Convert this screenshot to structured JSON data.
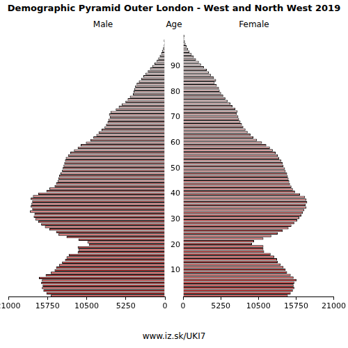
{
  "chart_data": {
    "type": "bar",
    "orientation": "horizontal",
    "title": "Demographic Pyramid Outer London - West and North West 2019",
    "ylabel": "Age",
    "footer": "www.iz.sk/UKI7",
    "categories": [
      null,
      null,
      null,
      null,
      null,
      null,
      null,
      null,
      null,
      null,
      "10",
      null,
      null,
      null,
      null,
      null,
      null,
      null,
      null,
      null,
      "20",
      null,
      null,
      null,
      null,
      null,
      null,
      null,
      null,
      null,
      "30",
      null,
      null,
      null,
      null,
      null,
      null,
      null,
      null,
      null,
      "40",
      null,
      null,
      null,
      null,
      null,
      null,
      null,
      null,
      null,
      "50",
      null,
      null,
      null,
      null,
      null,
      null,
      null,
      null,
      null,
      "60",
      null,
      null,
      null,
      null,
      null,
      null,
      null,
      null,
      null,
      "70",
      null,
      null,
      null,
      null,
      null,
      null,
      null,
      null,
      null,
      "80",
      null,
      null,
      null,
      null,
      null,
      null,
      null,
      null,
      null,
      "90",
      null,
      null,
      null,
      null,
      null,
      null,
      null,
      null,
      null,
      null
    ],
    "series": [
      {
        "name": "Male",
        "color": "#d03c3c",
        "values": [
          15300,
          15900,
          16300,
          16500,
          16400,
          16600,
          16500,
          16900,
          16000,
          15300,
          14800,
          14600,
          14200,
          13800,
          13400,
          13200,
          12900,
          11700,
          11600,
          11700,
          10200,
          10400,
          11600,
          13200,
          14300,
          14600,
          15500,
          16100,
          16600,
          17000,
          17400,
          17600,
          17500,
          18100,
          17800,
          18000,
          17900,
          17800,
          18000,
          17700,
          17000,
          15900,
          15500,
          14800,
          14600,
          14400,
          14300,
          14200,
          14000,
          13800,
          13700,
          13600,
          13500,
          13400,
          13300,
          13000,
          12700,
          12200,
          11700,
          11300,
          10600,
          10000,
          9600,
          9200,
          8900,
          8500,
          8100,
          7900,
          7700,
          7600,
          7400,
          7500,
          7300,
          6600,
          6200,
          5800,
          5300,
          5000,
          4700,
          4300,
          4200,
          4100,
          4000,
          3800,
          3500,
          3200,
          2900,
          2600,
          2300,
          2000,
          1700,
          1400,
          1100,
          900,
          700,
          500,
          400,
          250,
          150,
          100,
          150
        ]
      },
      {
        "name": "Female",
        "color": "#d03c3c",
        "values": [
          14600,
          15000,
          15300,
          15500,
          15400,
          15500,
          15800,
          15400,
          15000,
          14500,
          14300,
          14000,
          13600,
          13200,
          13100,
          12700,
          12200,
          11300,
          11200,
          11200,
          9600,
          9900,
          11200,
          12300,
          13200,
          13900,
          14700,
          15100,
          15500,
          15900,
          16200,
          16500,
          16700,
          16900,
          17200,
          17100,
          17300,
          17200,
          17000,
          16300,
          15600,
          15300,
          15100,
          14900,
          14800,
          14700,
          14600,
          14500,
          14300,
          14200,
          14000,
          13900,
          13700,
          13400,
          13200,
          12900,
          12500,
          12100,
          11600,
          11000,
          10300,
          9800,
          9400,
          9000,
          8700,
          8400,
          8200,
          8000,
          7800,
          7700,
          7500,
          7600,
          7300,
          6900,
          6600,
          6200,
          5900,
          5600,
          5300,
          5100,
          5000,
          4700,
          4400,
          4600,
          4300,
          3900,
          3600,
          3300,
          2900,
          2500,
          2200,
          1800,
          1500,
          1200,
          900,
          700,
          500,
          350,
          250,
          150,
          200
        ]
      }
    ],
    "xlim": [
      0,
      21000
    ],
    "xticks": [
      0,
      5250,
      10500,
      15750,
      21000
    ],
    "grid": false
  }
}
